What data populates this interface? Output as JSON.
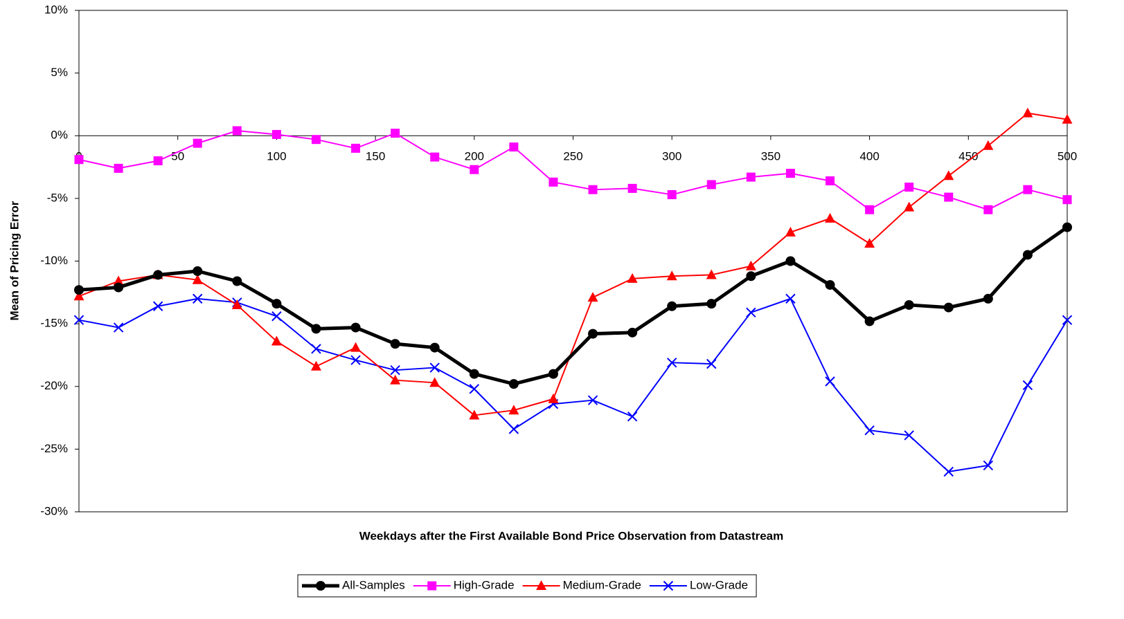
{
  "chart_data": {
    "type": "line",
    "xlabel": "Weekdays after the First Available Bond Price Observation from Datastream",
    "ylabel": "Mean of Pricing Error",
    "x": [
      0,
      20,
      40,
      60,
      80,
      100,
      120,
      140,
      160,
      180,
      200,
      220,
      240,
      260,
      280,
      300,
      320,
      340,
      360,
      380,
      400,
      420,
      440,
      460,
      480,
      500
    ],
    "series": [
      {
        "name": "All-Samples",
        "color": "#000000",
        "marker": "circle",
        "line_width": 5,
        "values": [
          -12.3,
          -12.1,
          -11.1,
          -10.8,
          -11.6,
          -13.4,
          -15.4,
          -15.3,
          -16.6,
          -16.9,
          -19.0,
          -19.8,
          -19.0,
          -15.8,
          -15.7,
          -13.6,
          -13.4,
          -11.2,
          -10.0,
          -11.9,
          -14.8,
          -13.5,
          -13.7,
          -13.0,
          -9.5,
          -7.3
        ]
      },
      {
        "name": "High-Grade",
        "color": "#ff00ff",
        "marker": "square",
        "line_width": 2,
        "values": [
          -1.9,
          -2.6,
          -2.0,
          -0.6,
          0.4,
          0.1,
          -0.3,
          -1.0,
          0.2,
          -1.7,
          -2.7,
          -0.9,
          -3.7,
          -4.3,
          -4.2,
          -4.7,
          -3.9,
          -3.3,
          -3.0,
          -3.6,
          -5.9,
          -4.1,
          -4.9,
          -5.9,
          -4.3,
          -5.1
        ]
      },
      {
        "name": "Medium-Grade",
        "color": "#ff0000",
        "marker": "triangle",
        "line_width": 2,
        "values": [
          -12.8,
          -11.6,
          -11.1,
          -11.5,
          -13.5,
          -16.4,
          -18.4,
          -16.9,
          -19.5,
          -19.7,
          -22.3,
          -21.9,
          -21.0,
          -12.9,
          -11.4,
          -11.2,
          -11.1,
          -10.4,
          -7.7,
          -6.6,
          -8.6,
          -5.7,
          -3.2,
          -0.8,
          1.8,
          1.3
        ]
      },
      {
        "name": "Low-Grade",
        "color": "#0000ff",
        "marker": "x",
        "line_width": 2,
        "values": [
          -14.7,
          -15.3,
          -13.6,
          -13.0,
          -13.3,
          -14.4,
          -17.0,
          -17.9,
          -18.7,
          -18.5,
          -20.2,
          -23.4,
          -21.4,
          -21.1,
          -22.4,
          -18.1,
          -18.2,
          -14.1,
          -13.0,
          -19.6,
          -23.5,
          -23.9,
          -26.8,
          -26.3,
          -19.9,
          -14.7
        ]
      }
    ],
    "xlim": [
      0,
      500
    ],
    "xticks": [
      0,
      50,
      100,
      150,
      200,
      250,
      300,
      350,
      400,
      450,
      500
    ],
    "ylim": [
      -30,
      10
    ],
    "yticks": [
      {
        "value": -30,
        "label": "-30%"
      },
      {
        "value": -25,
        "label": "-25%"
      },
      {
        "value": -20,
        "label": "-20%"
      },
      {
        "value": -15,
        "label": "-15%"
      },
      {
        "value": -10,
        "label": "-10%"
      },
      {
        "value": -5,
        "label": "-5%"
      },
      {
        "value": 0,
        "label": "0%"
      },
      {
        "value": 5,
        "label": "5%"
      },
      {
        "value": 10,
        "label": "10%"
      }
    ],
    "legend": "bottom"
  }
}
